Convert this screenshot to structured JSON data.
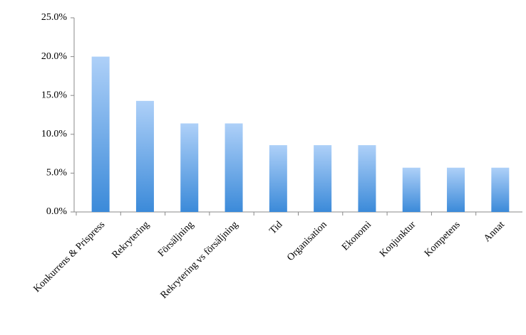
{
  "chart_data": {
    "type": "bar",
    "categories": [
      "Konkurrens & Prispress",
      "Rekrytering",
      "Försäljning",
      "Rekrytering vs försäljning",
      "Tid",
      "Organisation",
      "Ekonomi",
      "Konjunktur",
      "Kompetens",
      "Annat"
    ],
    "values": [
      20.0,
      14.3,
      11.4,
      11.4,
      8.6,
      8.6,
      8.6,
      5.7,
      5.7,
      5.7
    ],
    "ylim": [
      0,
      25
    ],
    "yticks": [
      {
        "value": 0,
        "label": "0.0%"
      },
      {
        "value": 5,
        "label": "5.0%"
      },
      {
        "value": 10,
        "label": "10.0%"
      },
      {
        "value": 15,
        "label": "15.0%"
      },
      {
        "value": 20,
        "label": "20.0%"
      },
      {
        "value": 25,
        "label": "25.0%"
      }
    ]
  }
}
